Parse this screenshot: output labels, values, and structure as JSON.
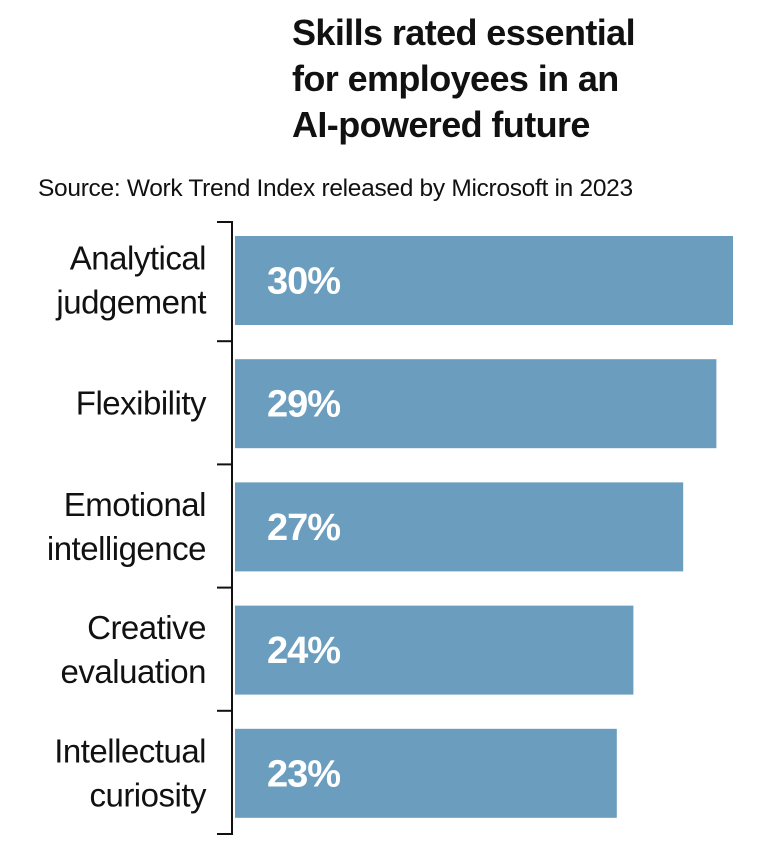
{
  "title_lines": [
    "Skills rated essential",
    "for employees in an",
    "AI-powered future"
  ],
  "subtitle": "Source: Work Trend Index released by Microsoft in 2023",
  "colors": {
    "bar": "#6b9dbf",
    "bar_label": "#ffffff",
    "axis": "#111111",
    "text": "#111111"
  },
  "chart_data": {
    "type": "bar",
    "orientation": "horizontal",
    "title": "Skills rated essential for employees in an AI-powered future",
    "subtitle": "Source: Work Trend Index released by Microsoft in 2023",
    "categories": [
      [
        "Analytical",
        "judgement"
      ],
      [
        "Flexibility"
      ],
      [
        "Emotional",
        "intelligence"
      ],
      [
        "Creative",
        "evaluation"
      ],
      [
        "Intellectual",
        "curiosity"
      ]
    ],
    "values": [
      30,
      29,
      27,
      24,
      23
    ],
    "value_labels": [
      "30%",
      "29%",
      "27%",
      "24%",
      "23%"
    ],
    "unit": "%",
    "xlim": [
      0,
      30
    ],
    "grid": false,
    "legend": "none"
  }
}
